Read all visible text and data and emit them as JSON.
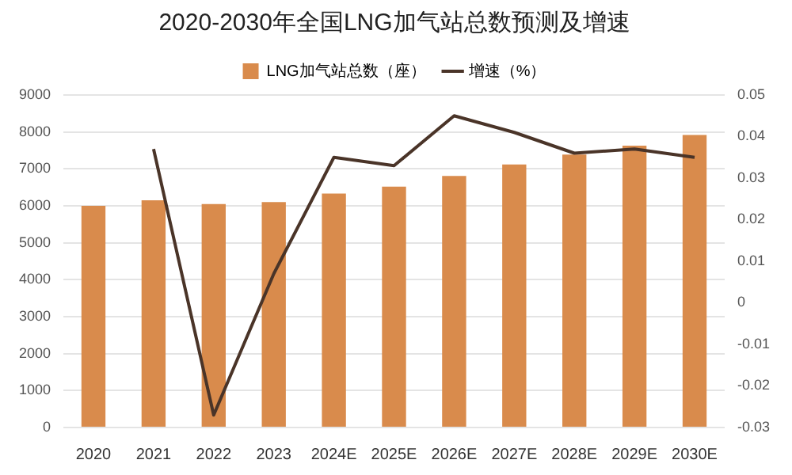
{
  "chart_data": {
    "type": "bar",
    "title": "2020-2030年全国LNG加气站总数预测及增速",
    "categories": [
      "2020",
      "2021",
      "2022",
      "2023",
      "2024E",
      "2025E",
      "2026E",
      "2027E",
      "2028E",
      "2029E",
      "2030E"
    ],
    "series": [
      {
        "name": "LNG加气站总数（座）",
        "color": "#d98b4c",
        "values": [
          6000,
          6150,
          6050,
          6100,
          6330,
          6520,
          6810,
          7120,
          7390,
          7630,
          7920
        ]
      },
      {
        "name": "增速（%）",
        "type": "line",
        "axis": "y2",
        "color": "#4a3428",
        "values": [
          null,
          0.037,
          -0.027,
          0.007,
          0.035,
          0.033,
          0.045,
          0.041,
          0.036,
          0.037,
          0.035
        ]
      }
    ],
    "ylim": [
      0,
      9000
    ],
    "yticks": [
      0,
      1000,
      2000,
      3000,
      4000,
      5000,
      6000,
      7000,
      8000,
      9000
    ],
    "y2lim": [
      -0.03,
      0.05
    ],
    "y2ticks": [
      -0.03,
      -0.02,
      -0.01,
      0,
      0.01,
      0.02,
      0.03,
      0.04,
      0.05
    ],
    "grid": "y",
    "legend": "top",
    "marker": "none",
    "line_style": "solid"
  }
}
